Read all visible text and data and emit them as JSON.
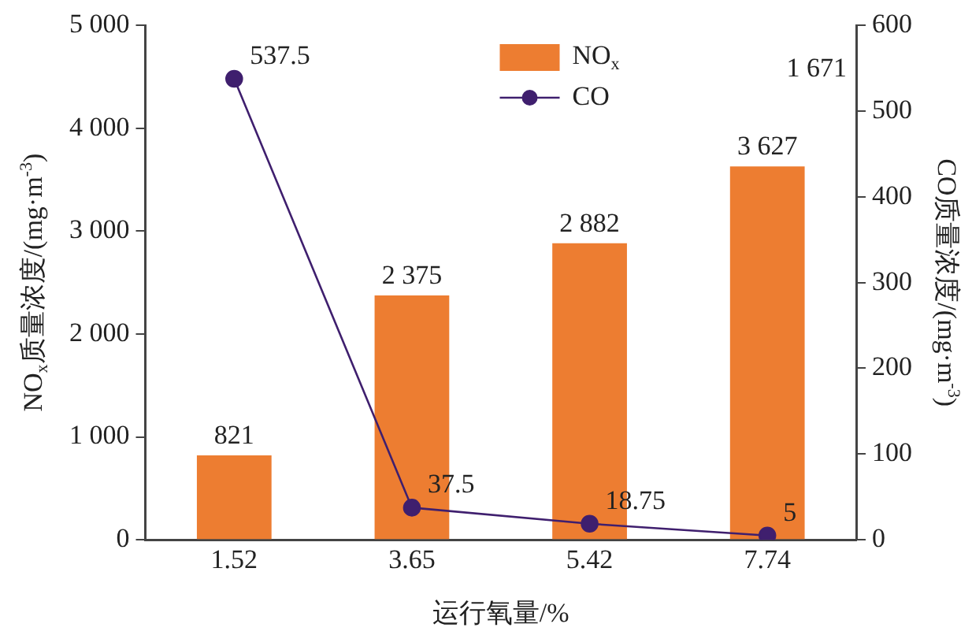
{
  "chart_data": {
    "type": "bar",
    "xlabel": "运行氧量/%",
    "ylabel": "NO$_{x}$质量浓度/(mg·m$^{-3}$)",
    "y2label": "CO质量浓度/(mg·m$^{-3}$)",
    "categories": [
      "1.52",
      "3.65",
      "5.42",
      "7.74"
    ],
    "series": [
      {
        "name": "NO$_{x}$",
        "color": "#ed7d31",
        "values": [
          821,
          2375,
          2882,
          3627
        ],
        "value_labels": [
          "821",
          "2 375",
          "2 882",
          "3 627"
        ]
      },
      {
        "name": "CO",
        "type": "line",
        "axis": "y2",
        "color": "#3f1f6e",
        "marker": "circle",
        "values": [
          537.5,
          37.5,
          18.75,
          5
        ],
        "value_labels": [
          "537.5",
          "37.5",
          "18.75",
          "5"
        ]
      }
    ],
    "ylim": [
      0,
      5000
    ],
    "yticks": [
      0,
      {
        "value": 1000,
        "label": "1 000"
      },
      {
        "value": 2000,
        "label": "2 000"
      },
      {
        "value": 3000,
        "label": "3 000"
      },
      {
        "value": 4000,
        "label": "4 000"
      },
      {
        "value": 5000,
        "label": "5 000"
      }
    ],
    "y2lim": [
      0,
      600
    ],
    "y2ticks": [
      0,
      100,
      200,
      300,
      400,
      500,
      600
    ],
    "legend": "top",
    "grid": false,
    "annotations": [
      "1 671"
    ]
  }
}
